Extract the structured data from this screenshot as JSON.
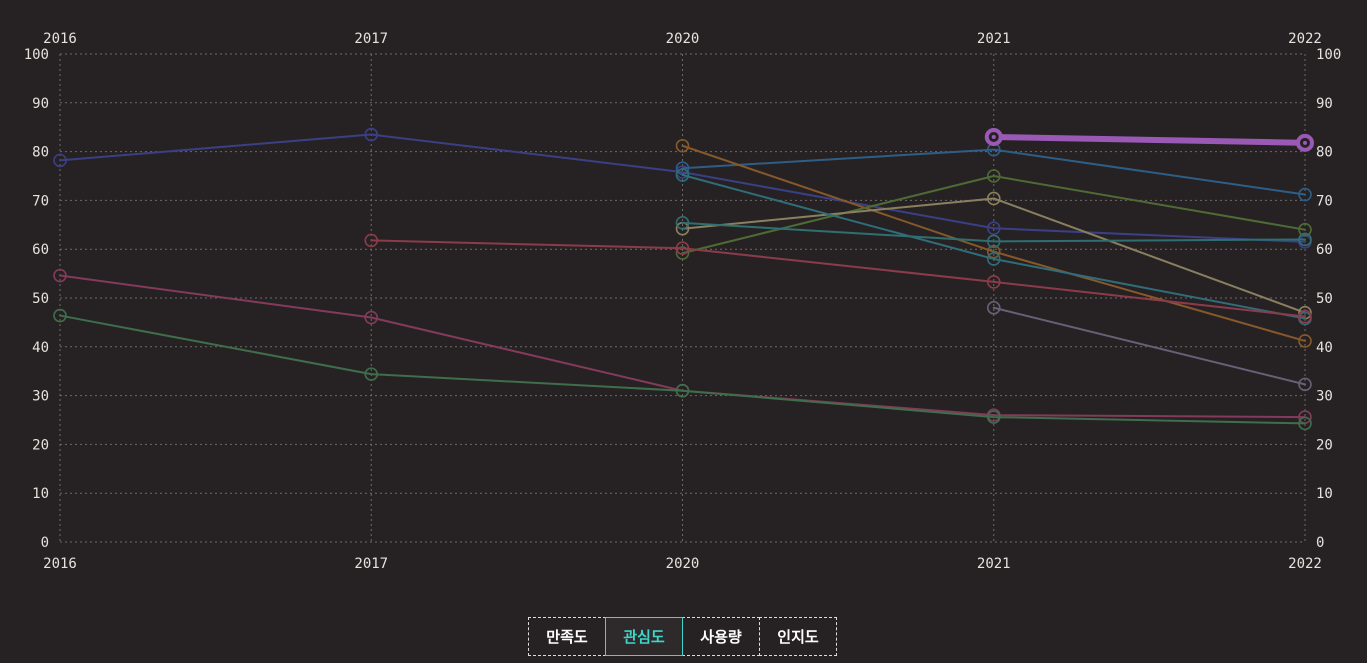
{
  "chart_data": {
    "type": "line",
    "x": [
      "2016",
      "2017",
      "2020",
      "2021",
      "2022"
    ],
    "ylim": [
      0,
      100
    ],
    "yticks": [
      "0",
      "10",
      "20",
      "30",
      "40",
      "50",
      "60",
      "70",
      "80",
      "90",
      "100"
    ],
    "grid": true,
    "series": [
      {
        "color": "#9b59b6",
        "highlight": true,
        "values": [
          null,
          null,
          null,
          83,
          81.8
        ]
      },
      {
        "color": "#3b3f86",
        "values": [
          78.2,
          83.5,
          75.8,
          64.3,
          61.5
        ]
      },
      {
        "color": "#2d5e86",
        "values": [
          null,
          null,
          76.6,
          80.4,
          71.2
        ]
      },
      {
        "color": "#86582a",
        "values": [
          null,
          null,
          81.2,
          59.5,
          41.2
        ]
      },
      {
        "color": "#4e6b35",
        "values": [
          null,
          null,
          59.2,
          75,
          64
        ]
      },
      {
        "color": "#8a8060",
        "values": [
          null,
          null,
          64.2,
          70.4,
          47
        ]
      },
      {
        "color": "#2f6d7a",
        "values": [
          null,
          null,
          75.2,
          58,
          45.8
        ]
      },
      {
        "color": "#2f6f70",
        "values": [
          null,
          null,
          65.4,
          61.6,
          62
        ]
      },
      {
        "color": "#8c3b4a",
        "values": [
          null,
          61.8,
          60.2,
          53.3,
          46.2
        ]
      },
      {
        "color": "#686078",
        "values": [
          null,
          null,
          null,
          48,
          32.3
        ]
      },
      {
        "color": "#843a5a",
        "values": [
          54.6,
          46,
          31,
          26,
          25.6
        ]
      },
      {
        "color": "#3e6e4c",
        "values": [
          46.4,
          34.4,
          31,
          25.6,
          24.3
        ]
      }
    ]
  },
  "tabs": [
    {
      "label": "만족도",
      "active": false
    },
    {
      "label": "관심도",
      "active": true
    },
    {
      "label": "사용량",
      "active": false
    },
    {
      "label": "인지도",
      "active": false
    }
  ]
}
